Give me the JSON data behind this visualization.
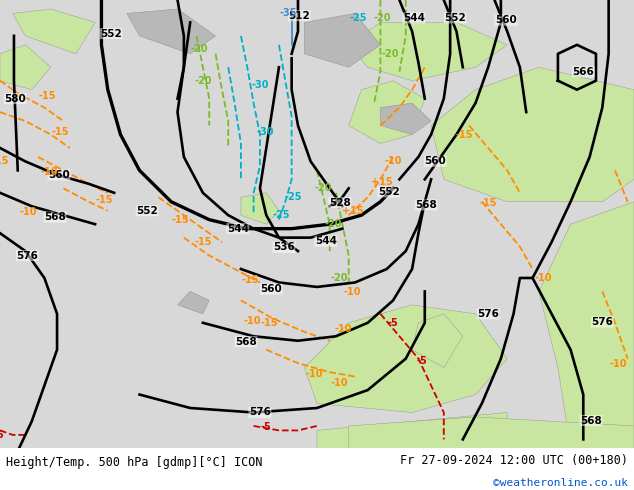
{
  "title_left": "Height/Temp. 500 hPa [gdmp][°C] ICON",
  "title_right": "Fr 27-09-2024 12:00 UTC (00+180)",
  "credit": "©weatheronline.co.uk",
  "fig_width": 6.34,
  "fig_height": 4.9,
  "dpi": 100,
  "ocean_color": "#d8d8d8",
  "land_green": "#c8e6a0",
  "land_grey": "#b8b8b8",
  "bottom_bar_color": "#ffffff",
  "geop_color": "#000000",
  "temp_orange": "#ff8c00",
  "temp_red": "#cc0000",
  "temp_cyan": "#00b0c8",
  "temp_green": "#7aba28",
  "temp_blue": "#4488cc"
}
